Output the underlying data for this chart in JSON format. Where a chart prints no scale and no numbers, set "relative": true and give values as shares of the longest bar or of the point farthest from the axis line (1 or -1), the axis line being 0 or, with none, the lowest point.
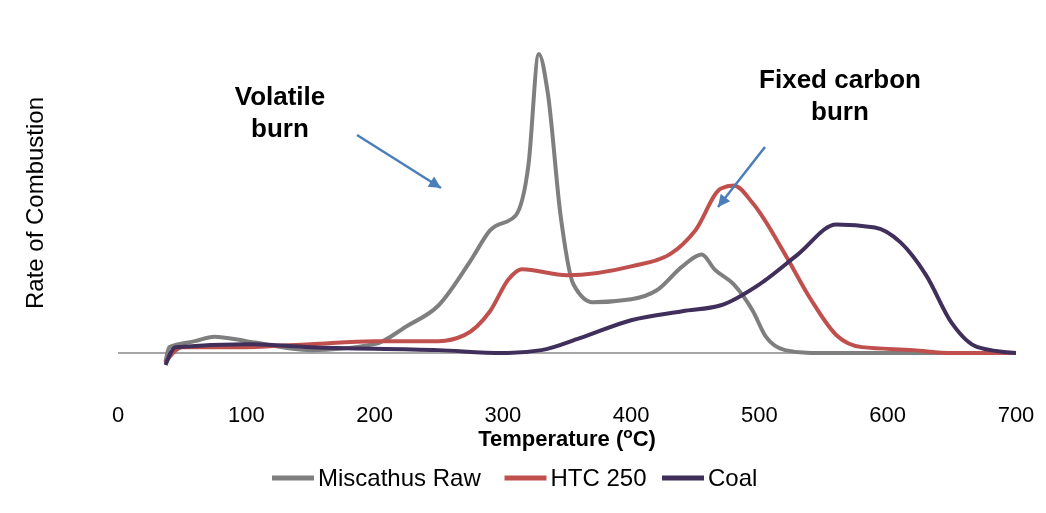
{
  "chart_data": {
    "type": "line",
    "relative": true,
    "xlabel": "Temperature ($^{o}$C)",
    "ylabel": "Rate of Combustion",
    "xlim": [
      0,
      700
    ],
    "xticks": [
      0,
      100,
      200,
      300,
      400,
      500,
      600,
      700
    ],
    "legend": "bottom",
    "marker": "none",
    "line_style": "solid",
    "annotations": [
      "Volatile burn",
      "Fixed carbon burn"
    ],
    "series": [
      {
        "name": "Miscathus Raw",
        "color": "#7f7f7f",
        "x": [
          37,
          40,
          60,
          75,
          100,
          150,
          200,
          225,
          250,
          275,
          290,
          310,
          320,
          328,
          335,
          345,
          355,
          370,
          400,
          420,
          440,
          455,
          465,
          480,
          495,
          505,
          520,
          540,
          700
        ],
        "values": [
          -0.03,
          0.02,
          0.04,
          0.055,
          0.04,
          0.01,
          0.03,
          0.09,
          0.16,
          0.31,
          0.41,
          0.46,
          0.63,
          1.0,
          0.87,
          0.46,
          0.23,
          0.17,
          0.18,
          0.21,
          0.29,
          0.33,
          0.28,
          0.23,
          0.14,
          0.055,
          0.01,
          0,
          0
        ]
      },
      {
        "name": "HTC 250",
        "color": "#c0504d",
        "x": [
          37,
          50,
          100,
          150,
          200,
          250,
          270,
          290,
          305,
          315,
          350,
          400,
          430,
          450,
          470,
          480,
          495,
          520,
          540,
          560,
          580,
          620,
          650,
          700
        ],
        "values": [
          -0.03,
          0.02,
          0.02,
          0.03,
          0.04,
          0.04,
          0.06,
          0.14,
          0.25,
          0.28,
          0.26,
          0.29,
          0.33,
          0.41,
          0.55,
          0.56,
          0.5,
          0.33,
          0.18,
          0.06,
          0.02,
          0.01,
          0,
          0
        ]
      },
      {
        "name": "Coal",
        "color": "#3f2f5a",
        "x": [
          37,
          45,
          100,
          150,
          250,
          300,
          330,
          360,
          400,
          440,
          470,
          500,
          530,
          560,
          590,
          610,
          630,
          650,
          670,
          700
        ],
        "values": [
          -0.04,
          0.02,
          0.03,
          0.02,
          0.01,
          0,
          0.01,
          0.05,
          0.11,
          0.14,
          0.16,
          0.23,
          0.33,
          0.43,
          0.42,
          0.37,
          0.26,
          0.1,
          0.02,
          0
        ]
      }
    ]
  }
}
